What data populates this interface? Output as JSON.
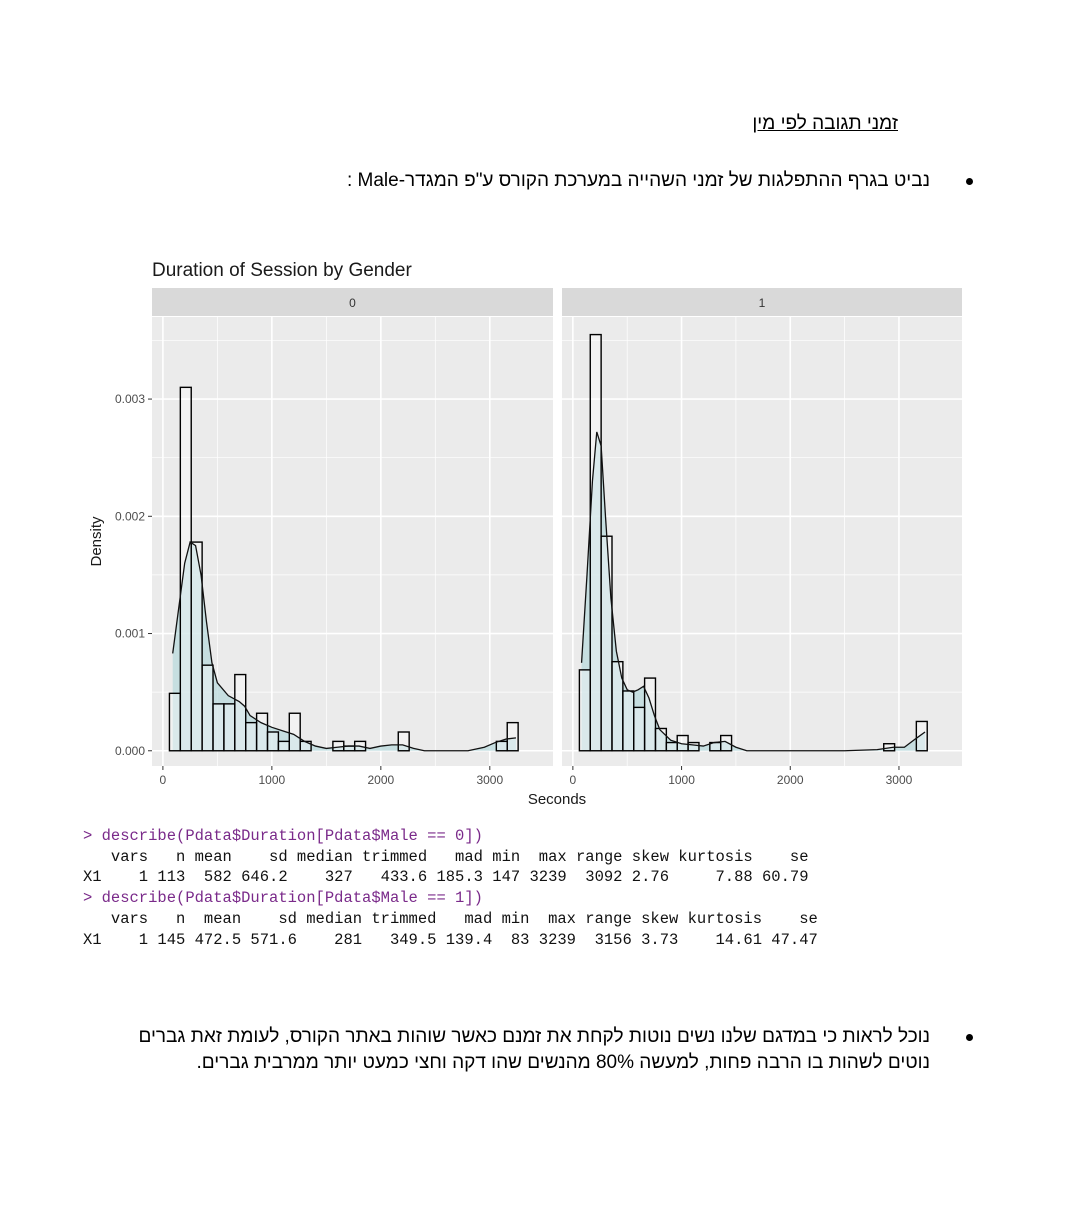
{
  "document": {
    "heading": "זמני תגובה לפי מין",
    "bullet1": "נביט בגרף ההתפלגות של זמני השהייה במערכת הקורס ע\"פ המגדר-Male :",
    "bullet2_line1": "נוכל לראות כי במדגם שלנו נשים נוטות לקחת את זמנם כאשר שוהות באתר הקורס, לעומת זאת גברים",
    "bullet2_line2": "נוטים לשהות בו הרבה פחות, למעשה 80% מהנשים שהו דקה וחצי כמעט יותר ממרבית גברים."
  },
  "colors": {
    "panel_bg": "#ebebeb",
    "strip_bg": "#d9d9d9",
    "grid": "#ffffff",
    "fill": "#cfe7ea",
    "density_fill": "#b9d9dc",
    "bar_stroke": "#000000",
    "command_color": "#7a2a8a"
  },
  "chart_data": {
    "type": "histogram",
    "title": "Duration of Session by Gender",
    "xlabel": "Seconds",
    "ylabel": "Density",
    "xlim": [
      -100,
      3580
    ],
    "ylim": [
      -0.00013,
      0.0037
    ],
    "x_ticks": [
      0,
      1000,
      2000,
      3000
    ],
    "x_tick_labels": [
      "0",
      "1000",
      "2000",
      "3000"
    ],
    "y_ticks": [
      0.0,
      0.001,
      0.002,
      0.003
    ],
    "y_tick_labels": [
      "0.000",
      "0.001",
      "0.002",
      "0.003"
    ],
    "grid": true,
    "bin_width": 100,
    "facets": [
      {
        "label": "0",
        "bins": [
          {
            "x0": 60,
            "x1": 160,
            "density": 0.00049
          },
          {
            "x0": 160,
            "x1": 260,
            "density": 0.0031
          },
          {
            "x0": 260,
            "x1": 360,
            "density": 0.00178
          },
          {
            "x0": 360,
            "x1": 460,
            "density": 0.00073
          },
          {
            "x0": 460,
            "x1": 560,
            "density": 0.0004
          },
          {
            "x0": 560,
            "x1": 660,
            "density": 0.0004
          },
          {
            "x0": 660,
            "x1": 760,
            "density": 0.00065
          },
          {
            "x0": 760,
            "x1": 860,
            "density": 0.00024
          },
          {
            "x0": 860,
            "x1": 960,
            "density": 0.00032
          },
          {
            "x0": 960,
            "x1": 1060,
            "density": 0.00016
          },
          {
            "x0": 1060,
            "x1": 1160,
            "density": 8e-05
          },
          {
            "x0": 1160,
            "x1": 1260,
            "density": 0.00032
          },
          {
            "x0": 1260,
            "x1": 1360,
            "density": 8e-05
          },
          {
            "x0": 1560,
            "x1": 1660,
            "density": 8e-05
          },
          {
            "x0": 1660,
            "x1": 1760,
            "density": 4e-05
          },
          {
            "x0": 1760,
            "x1": 1860,
            "density": 8e-05
          },
          {
            "x0": 2160,
            "x1": 2260,
            "density": 0.00016
          },
          {
            "x0": 3060,
            "x1": 3160,
            "density": 8e-05
          },
          {
            "x0": 3160,
            "x1": 3260,
            "density": 0.00024
          }
        ],
        "density_curve": [
          [
            90,
            0.00083
          ],
          [
            150,
            0.00125
          ],
          [
            200,
            0.0016
          ],
          [
            250,
            0.00178
          ],
          [
            300,
            0.00175
          ],
          [
            350,
            0.0015
          ],
          [
            400,
            0.0011
          ],
          [
            450,
            0.00075
          ],
          [
            500,
            0.00058
          ],
          [
            600,
            0.00047
          ],
          [
            700,
            0.00042
          ],
          [
            750,
            0.00038
          ],
          [
            800,
            0.0003
          ],
          [
            900,
            0.00024
          ],
          [
            1000,
            0.0002
          ],
          [
            1100,
            0.00017
          ],
          [
            1200,
            0.00014
          ],
          [
            1300,
            8e-05
          ],
          [
            1400,
            4e-05
          ],
          [
            1500,
            2e-05
          ],
          [
            1600,
            3e-05
          ],
          [
            1700,
            4e-05
          ],
          [
            1800,
            4e-05
          ],
          [
            1900,
            2e-05
          ],
          [
            2000,
            4e-05
          ],
          [
            2100,
            5e-05
          ],
          [
            2200,
            5e-05
          ],
          [
            2300,
            2e-05
          ],
          [
            2400,
            0.0
          ],
          [
            2600,
            0.0
          ],
          [
            2800,
            0.0
          ],
          [
            2950,
            3e-05
          ],
          [
            3050,
            7e-05
          ],
          [
            3150,
            0.0001
          ],
          [
            3240,
            0.00011
          ]
        ]
      },
      {
        "label": "1",
        "bins": [
          {
            "x0": 60,
            "x1": 160,
            "density": 0.00069
          },
          {
            "x0": 160,
            "x1": 260,
            "density": 0.00355
          },
          {
            "x0": 260,
            "x1": 360,
            "density": 0.00183
          },
          {
            "x0": 360,
            "x1": 460,
            "density": 0.00076
          },
          {
            "x0": 460,
            "x1": 560,
            "density": 0.00051
          },
          {
            "x0": 560,
            "x1": 660,
            "density": 0.00037
          },
          {
            "x0": 660,
            "x1": 760,
            "density": 0.00062
          },
          {
            "x0": 760,
            "x1": 860,
            "density": 0.00019
          },
          {
            "x0": 860,
            "x1": 960,
            "density": 7e-05
          },
          {
            "x0": 960,
            "x1": 1060,
            "density": 0.00013
          },
          {
            "x0": 1060,
            "x1": 1160,
            "density": 7e-05
          },
          {
            "x0": 1260,
            "x1": 1360,
            "density": 7e-05
          },
          {
            "x0": 1360,
            "x1": 1460,
            "density": 0.00013
          },
          {
            "x0": 2860,
            "x1": 2960,
            "density": 6e-05
          },
          {
            "x0": 3160,
            "x1": 3260,
            "density": 0.00025
          }
        ],
        "density_curve": [
          [
            80,
            0.00075
          ],
          [
            130,
            0.0015
          ],
          [
            180,
            0.0023
          ],
          [
            220,
            0.00272
          ],
          [
            260,
            0.0026
          ],
          [
            300,
            0.002
          ],
          [
            350,
            0.0013
          ],
          [
            400,
            0.00085
          ],
          [
            450,
            0.00062
          ],
          [
            500,
            0.00052
          ],
          [
            550,
            0.0005
          ],
          [
            600,
            0.00052
          ],
          [
            650,
            0.00055
          ],
          [
            700,
            0.00045
          ],
          [
            750,
            0.0003
          ],
          [
            800,
            0.00018
          ],
          [
            900,
            9e-05
          ],
          [
            1000,
            6e-05
          ],
          [
            1100,
            5e-05
          ],
          [
            1200,
            4e-05
          ],
          [
            1300,
            7e-05
          ],
          [
            1400,
            8e-05
          ],
          [
            1500,
            3e-05
          ],
          [
            1600,
            0.0
          ],
          [
            2000,
            0.0
          ],
          [
            2500,
            0.0
          ],
          [
            2800,
            1e-05
          ],
          [
            2950,
            3e-05
          ],
          [
            3050,
            3e-05
          ],
          [
            3150,
            0.0001
          ],
          [
            3240,
            0.00016
          ]
        ]
      }
    ]
  },
  "console": {
    "cmd1": "> describe(Pdata$Duration[Pdata$Male == 0])",
    "hdr1": "   vars   n mean    sd median trimmed   mad min  max range skew kurtosis    se",
    "row1": "X1    1 113  582 646.2    327   433.6 185.3 147 3239  3092 2.76     7.88 60.79",
    "cmd2": "> describe(Pdata$Duration[Pdata$Male == 1])",
    "hdr2": "   vars   n  mean    sd median trimmed   mad min  max range skew kurtosis    se",
    "row2": "X1    1 145 472.5 571.6    281   349.5 139.4  83 3239  3156 3.73    14.61 47.47"
  }
}
